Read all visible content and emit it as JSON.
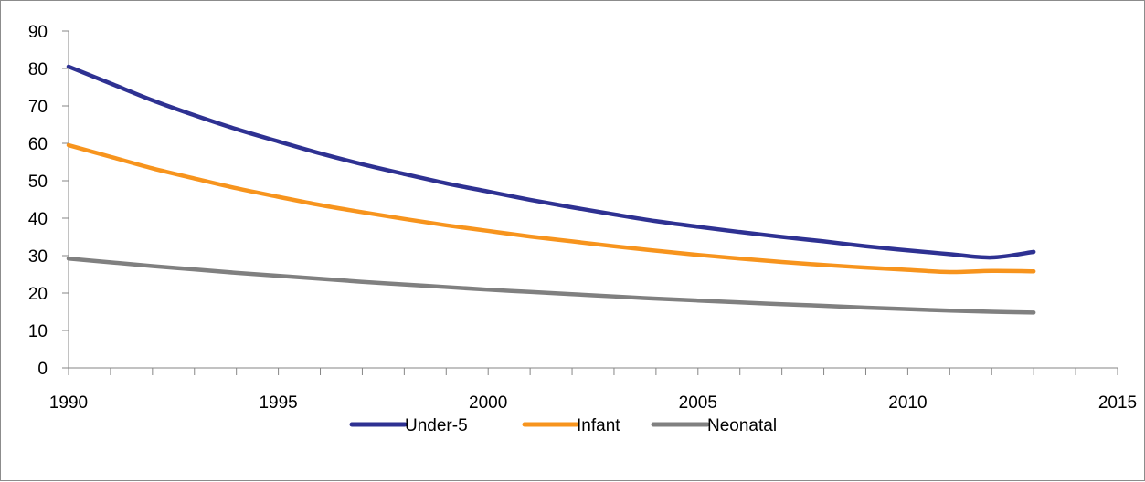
{
  "chart_data": {
    "type": "line",
    "title": "",
    "xlabel": "",
    "ylabel": "",
    "xlim": [
      1990,
      2015
    ],
    "ylim": [
      0,
      90
    ],
    "x_ticks": [
      1990,
      1995,
      2000,
      2005,
      2010,
      2015
    ],
    "y_ticks": [
      0,
      10,
      20,
      30,
      40,
      50,
      60,
      70,
      80,
      90
    ],
    "grid": false,
    "legend_position": "bottom",
    "x": [
      1990,
      1991,
      1992,
      1993,
      1994,
      1995,
      1996,
      1997,
      1998,
      1999,
      2000,
      2001,
      2002,
      2003,
      2004,
      2005,
      2006,
      2007,
      2008,
      2009,
      2010,
      2011,
      2012,
      2013
    ],
    "series": [
      {
        "name": "Under-5",
        "color": "#2e3192",
        "values": [
          80.5,
          76.0,
          71.5,
          67.5,
          63.8,
          60.5,
          57.3,
          54.4,
          51.8,
          49.3,
          47.1,
          44.9,
          42.9,
          41.0,
          39.2,
          37.7,
          36.3,
          35.0,
          33.8,
          32.5,
          31.4,
          30.4,
          29.5,
          31.0
        ]
      },
      {
        "name": "Infant",
        "color": "#f7941d",
        "values": [
          59.5,
          56.4,
          53.3,
          50.6,
          48.0,
          45.7,
          43.5,
          41.6,
          39.8,
          38.1,
          36.6,
          35.1,
          33.8,
          32.5,
          31.3,
          30.2,
          29.2,
          28.3,
          27.5,
          26.8,
          26.2,
          25.6,
          25.9,
          25.8
        ]
      },
      {
        "name": "Neonatal",
        "color": "#808080",
        "values": [
          29.2,
          28.2,
          27.2,
          26.3,
          25.4,
          24.6,
          23.8,
          23.0,
          22.3,
          21.6,
          20.9,
          20.3,
          19.7,
          19.1,
          18.5,
          18.0,
          17.5,
          17.0,
          16.6,
          16.1,
          15.7,
          15.3,
          15.0,
          14.8
        ]
      }
    ]
  }
}
